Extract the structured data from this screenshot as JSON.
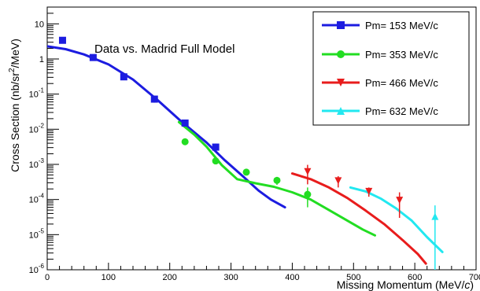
{
  "chart_data": {
    "type": "scatter",
    "title": "",
    "annotation": "Data vs. Madrid Full Model",
    "xlabel": {
      "prefix": "Missing Momentum (MeV/",
      "italic": "c",
      "suffix": ")"
    },
    "ylabel": {
      "prefix": "Cross Section (nb/sr",
      "sup": "2",
      "suffix": "/MeV)"
    },
    "x_axis": {
      "type": "linear",
      "range": [
        0,
        700
      ],
      "ticks": [
        0,
        100,
        200,
        300,
        400,
        500,
        600,
        700
      ],
      "tick_labels": [
        "0",
        "100",
        "200",
        "300",
        "400",
        "500",
        "600",
        "700"
      ]
    },
    "y_axis": {
      "type": "log",
      "range": [
        1e-06,
        30
      ],
      "decades": [
        -6,
        -5,
        -4,
        -3,
        -2,
        -1,
        0,
        1
      ],
      "tick_labels": [
        {
          "base": "10",
          "exp": "-6"
        },
        {
          "base": "10",
          "exp": "-5"
        },
        {
          "base": "10",
          "exp": "-4"
        },
        {
          "base": "10",
          "exp": "-3"
        },
        {
          "base": "10",
          "exp": "-2"
        },
        {
          "base": "10",
          "exp": "-1"
        },
        {
          "base": "1",
          "exp": ""
        },
        {
          "base": "10",
          "exp": ""
        }
      ]
    },
    "grid": false,
    "legend_position": "top-right",
    "series": [
      {
        "name": "Pm= 153 MeV/c",
        "color": "#1c1ce0",
        "marker": "square",
        "points": [
          [
            25,
            3.4
          ],
          [
            75,
            1.1
          ],
          [
            125,
            0.31
          ],
          [
            175,
            0.072
          ],
          [
            225,
            0.015
          ],
          [
            275,
            0.0031
          ]
        ],
        "errors": [
          [
            25,
            0.6
          ],
          [
            75,
            0.18
          ],
          [
            125,
            0.06
          ],
          [
            175,
            0.015
          ],
          [
            225,
            0.003
          ],
          [
            275,
            0.0008
          ]
        ],
        "model": [
          [
            0,
            2.3
          ],
          [
            30,
            1.9
          ],
          [
            60,
            1.35
          ],
          [
            100,
            0.7
          ],
          [
            140,
            0.26
          ],
          [
            180,
            0.068
          ],
          [
            220,
            0.016
          ],
          [
            260,
            0.0042
          ],
          [
            290,
            0.0013
          ],
          [
            320,
            0.00045
          ],
          [
            345,
            0.00018
          ],
          [
            365,
            0.0001
          ],
          [
            388,
            6e-05
          ]
        ]
      },
      {
        "name": "Pm= 353 MeV/c",
        "color": "#22dd22",
        "marker": "circle",
        "points": [
          [
            225,
            0.0044
          ],
          [
            275,
            0.00125
          ],
          [
            325,
            0.0006
          ],
          [
            375,
            0.00035
          ],
          [
            425,
            0.00014
          ]
        ],
        "errors": [
          [
            225,
            0.0005
          ],
          [
            275,
            0.0002
          ],
          [
            325,
            9e-05
          ],
          [
            375,
            9e-05
          ],
          [
            425,
            8e-05
          ]
        ],
        "model": [
          [
            215,
            0.016
          ],
          [
            240,
            0.007
          ],
          [
            260,
            0.0032
          ],
          [
            285,
            0.00095
          ],
          [
            310,
            0.00038
          ],
          [
            340,
            0.00029
          ],
          [
            370,
            0.00023
          ],
          [
            400,
            0.00016
          ],
          [
            430,
            0.0001
          ],
          [
            460,
            5e-05
          ],
          [
            490,
            2.5e-05
          ],
          [
            515,
            1.4e-05
          ],
          [
            535,
            9.5e-06
          ]
        ]
      },
      {
        "name": "Pm= 466 MeV/c",
        "color": "#e81c1c",
        "marker": "triangle-down",
        "points": [
          [
            425,
            0.00062
          ],
          [
            475,
            0.00034
          ],
          [
            525,
            0.00017
          ],
          [
            575,
            9.5e-05
          ]
        ],
        "errors": [
          [
            425,
            0.00035
          ],
          [
            475,
            0.00012
          ],
          [
            525,
            5e-05
          ],
          [
            575,
            6.5e-05
          ]
        ],
        "model": [
          [
            400,
            0.00055
          ],
          [
            430,
            0.00038
          ],
          [
            460,
            0.00022
          ],
          [
            490,
            0.00011
          ],
          [
            520,
            4.8e-05
          ],
          [
            550,
            2e-05
          ],
          [
            580,
            7e-06
          ],
          [
            605,
            2.8e-06
          ],
          [
            618,
            1.5e-06
          ]
        ]
      },
      {
        "name": "Pm= 632 MeV/c",
        "color": "#22e8f0",
        "marker": "triangle-up",
        "points": [
          [
            633,
            3.3e-05
          ]
        ],
        "errors": [
          [
            633,
            3.5e-05
          ]
        ],
        "model": [
          [
            495,
            0.00022
          ],
          [
            520,
            0.00017
          ],
          [
            545,
            0.000105
          ],
          [
            570,
            5.5e-05
          ],
          [
            595,
            2.5e-05
          ],
          [
            620,
            8.5e-06
          ],
          [
            645,
            3.2e-06
          ]
        ]
      }
    ]
  }
}
